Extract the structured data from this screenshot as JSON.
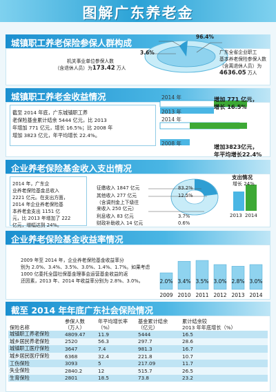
{
  "banner": {
    "title": "图解广东养老金"
  },
  "sec1": {
    "title": "城镇职工养老保险参保人群构成",
    "pct_big": "96.4%",
    "pct_small": "3.6%",
    "right_lines": [
      "广东全省企业职工",
      "基本养老保险参保人数",
      "（含离退休人员）为"
    ],
    "right_value": "4636.05",
    "right_unit": "万人",
    "left_lines": [
      "机关事业单位参保人数",
      "（含退休人员）为"
    ],
    "left_value": "173.42",
    "left_unit": "万人"
  },
  "sec2": {
    "title": "城镇职工养老金收益情况",
    "text": [
      "截至 2014 年底，广东城镇职工养",
      "老保险基金累计结余 5444 亿元，比 2013",
      "年增加 771 亿元，增长 16.5%；比 2008 年",
      "增加 3823 亿元，年平均增长 22.4%。"
    ],
    "year_a1": "2014 年",
    "year_a2": "2013 年",
    "callout_a": [
      "增加 771 亿元，",
      "增长 16.5%"
    ],
    "year_b1": "2014 年",
    "year_b2": "2008 年",
    "callout_b": [
      "增加3823亿元，",
      "年平均增长22.4%"
    ]
  },
  "sec3": {
    "title": "企业养老保险基金收入支出情况",
    "text": [
      "2014 年，广东企",
      "业养老保险基金总收入",
      "2221 亿元。在支出方面，",
      "2014 年企业养老保险基",
      "本养老金支出 1151 亿",
      "元，比 2013 年增加了 222",
      "亿元，增幅达到 24%。"
    ],
    "items": [
      {
        "label": "征缴收入 1847 亿元",
        "pct": "83.2%"
      },
      {
        "label": "其他收入 277 亿元",
        "pct": "12.5%"
      },
      {
        "label": "（含调剂金上下级往",
        "pct": ""
      },
      {
        "label": "来收入 250 亿元）",
        "pct": ""
      },
      {
        "label": "利息收入 83 亿元",
        "pct": "3.7%"
      },
      {
        "label": "财政补助收入 14 亿元",
        "pct": "0.6%"
      }
    ],
    "expense_title": "支出情况",
    "expense_growth": "增长 24%",
    "expense_years": [
      "2013",
      "2014"
    ]
  },
  "sec4": {
    "title": "企业养老保险基金收益率情况",
    "text": [
      "2009 年至 2014 年，企业养老保险基金收益率分",
      "别为 2.0%、3.4%、3.5%、3.0%、1.4%、1.7%。如果考虑",
      "1000 亿委托全国社保基金理事会运营基金收益的返",
      "还因素，2013 年、2014 年收益率分别为 2.8%、3.0%。"
    ]
  },
  "chart_data": {
    "type": "bar",
    "categories": [
      "2009",
      "2010",
      "2011",
      "2012",
      "2013",
      "2014"
    ],
    "labels": [
      "2.0%",
      "3.4%",
      "3.5%",
      "3.0%",
      "2.8%",
      "3.0%"
    ],
    "values": [
      2.0,
      3.4,
      3.5,
      3.0,
      2.8,
      3.0
    ]
  },
  "sec5": {
    "title": "截至 2014 年年底广东社会保险情况",
    "headers": [
      "保险名称",
      "参保人数\n（万人）",
      "年平均增长率\n（%）",
      "基金累计结余\n（亿元）",
      "累计结余较\n2013 年年底增长（%）"
    ],
    "rows": [
      [
        "城镇职工养老保险",
        "4809.47",
        "11.9",
        "5444",
        "16.5"
      ],
      [
        "城乡居民养老保险",
        "2520",
        "56.3",
        "297.7",
        "28.6"
      ],
      [
        "城镇职工医疗保险",
        "3647",
        "7.4",
        "981.3",
        "16.7"
      ],
      [
        "城乡居民医疗保险",
        "6368",
        "32.4",
        "221.8",
        "10.7"
      ],
      [
        "工伤保险",
        "3093",
        "5",
        "217.09",
        "11.7"
      ],
      [
        "失业保险",
        "2840.2",
        "12",
        "515.7",
        "26.5"
      ],
      [
        "生育保险",
        "2801",
        "18.5",
        "73.8",
        "23.2"
      ]
    ]
  }
}
